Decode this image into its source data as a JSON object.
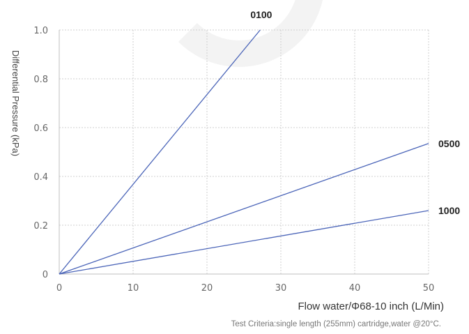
{
  "chart_data": {
    "type": "line",
    "xlabel": "Flow water/Φ68-10 inch (L/Min)",
    "ylabel": "Differential Pressure (kPa)",
    "note": "Test Criteria:single length (255mm) cartridge,water @20°C.",
    "xlim": [
      0,
      50
    ],
    "ylim": [
      0,
      1.0
    ],
    "xticks": [
      0,
      10,
      20,
      30,
      40,
      50
    ],
    "yticks": [
      0,
      0.2,
      0.4,
      0.6,
      0.8,
      1.0
    ],
    "ytick_labels": [
      "0",
      "0.2",
      "0.4",
      "0.6",
      "0.8",
      "1.0"
    ],
    "grid": true,
    "line_color": "#4a64b8",
    "series": [
      {
        "name": "0100",
        "x": [
          0,
          27.2
        ],
        "y": [
          0,
          1.0
        ]
      },
      {
        "name": "0500",
        "x": [
          0,
          50
        ],
        "y": [
          0,
          0.535
        ]
      },
      {
        "name": "1000",
        "x": [
          0,
          50
        ],
        "y": [
          0,
          0.26
        ]
      }
    ]
  }
}
